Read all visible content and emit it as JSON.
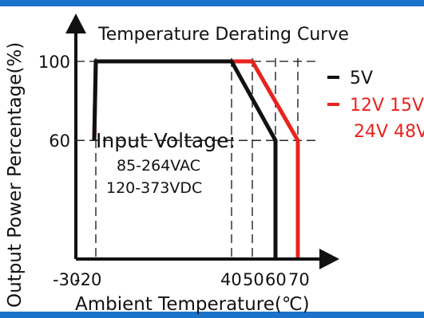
{
  "chart_data": {
    "type": "line",
    "title": "Temperature Derating Curve",
    "xlabel": "Ambient Temperature(℃)",
    "ylabel": "Output Power Percentage(%)",
    "x_ticks": [
      "-30",
      "-20",
      "40",
      "50",
      "60",
      "70"
    ],
    "y_ticks": [
      "100",
      "60"
    ],
    "series": [
      {
        "name": "5V",
        "color": "#111111",
        "x": [
          -30,
          -20,
          40,
          60,
          60
        ],
        "y": [
          60,
          100,
          100,
          60,
          0
        ]
      },
      {
        "name": "12V 15V 24V 48V",
        "color": "#e8231e",
        "x": [
          -30,
          -20,
          50,
          70,
          70
        ],
        "y": [
          60,
          100,
          100,
          60,
          0
        ]
      }
    ],
    "annotation": {
      "heading": "Input Voltage:",
      "lines": [
        "85-264VAC",
        "120-373VDC"
      ]
    },
    "legend": [
      {
        "lines": [
          "5V"
        ],
        "color": "#111111"
      },
      {
        "lines": [
          "12V 15V",
          "24V 48V"
        ],
        "color": "#e8231e"
      }
    ],
    "legend_position": "right",
    "grid": "dashed reference lines"
  },
  "frame_color": "#1a73c8"
}
